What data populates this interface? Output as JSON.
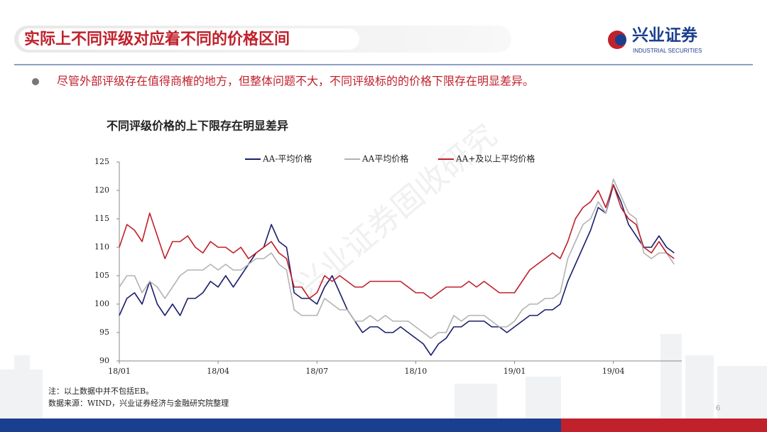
{
  "header": {
    "title": "实际上不同评级对应着不同的价格区间"
  },
  "logo": {
    "name": "兴业证券",
    "subtitle": "INDUSTRIAL SECURITIES"
  },
  "bullet": "尽管外部评级存在值得商榷的地方，但整体问题不大，不同评级标的的价格下限存在明显差异。",
  "watermark": "兴业证券固收研究",
  "chart_data": {
    "type": "line",
    "title": "不同评级价格的上下限存在明显差异",
    "categories": [
      "18/01",
      null,
      null,
      null,
      null,
      null,
      null,
      null,
      null,
      null,
      null,
      null,
      null,
      "18/04",
      null,
      null,
      null,
      null,
      null,
      null,
      null,
      null,
      null,
      null,
      null,
      null,
      "18/07",
      null,
      null,
      null,
      null,
      null,
      null,
      null,
      null,
      null,
      null,
      null,
      null,
      "18/10",
      null,
      null,
      null,
      null,
      null,
      null,
      null,
      null,
      null,
      null,
      null,
      null,
      "19/01",
      null,
      null,
      null,
      null,
      null,
      null,
      null,
      null,
      null,
      null,
      null,
      null,
      "19/04",
      null,
      null,
      null,
      null,
      null,
      null,
      null,
      null
    ],
    "series": [
      {
        "name": "AA-平均价格",
        "color": "#1b1f6b",
        "values": [
          98,
          101,
          102,
          100,
          104,
          100,
          98,
          100,
          98,
          101,
          101,
          102,
          104,
          103,
          105,
          103,
          105,
          107,
          109,
          110,
          114,
          111,
          110,
          102,
          101,
          101,
          100,
          103,
          105,
          102,
          99,
          97,
          95,
          96,
          96,
          95,
          95,
          96,
          95,
          94,
          93,
          91,
          93,
          94,
          96,
          96,
          97,
          97,
          97,
          96,
          96,
          95,
          96,
          97,
          98,
          98,
          99,
          99,
          100,
          104,
          107,
          110,
          113,
          117,
          116,
          121,
          118,
          114,
          112,
          110,
          110,
          112,
          110,
          109
        ]
      },
      {
        "name": "AA平均价格",
        "color": "#b3b3b3",
        "values": [
          103,
          105,
          105,
          102,
          104,
          103,
          101,
          103,
          105,
          106,
          106,
          106,
          107,
          106,
          107,
          106,
          106,
          107,
          108,
          108,
          109,
          107,
          106,
          99,
          98,
          98,
          98,
          101,
          100,
          99,
          99,
          97,
          97,
          98,
          97,
          98,
          97,
          97,
          97,
          96,
          95,
          94,
          95,
          95,
          98,
          97,
          98,
          98,
          98,
          97,
          96,
          96,
          97,
          99,
          100,
          100,
          101,
          101,
          102,
          108,
          111,
          114,
          115,
          118,
          116,
          122,
          119,
          116,
          115,
          109,
          108,
          109,
          109,
          107
        ]
      },
      {
        "name": "AA+及以上平均价格",
        "color": "#c0212b",
        "values": [
          110,
          114,
          113,
          111,
          116,
          112,
          108,
          111,
          111,
          112,
          110,
          109,
          111,
          110,
          110,
          109,
          110,
          108,
          109,
          110,
          111,
          109,
          108,
          103,
          103,
          101,
          102,
          105,
          104,
          105,
          104,
          103,
          103,
          104,
          104,
          104,
          104,
          104,
          103,
          102,
          102,
          101,
          102,
          103,
          103,
          103,
          104,
          103,
          104,
          103,
          102,
          102,
          102,
          104,
          106,
          107,
          108,
          109,
          108,
          111,
          115,
          117,
          118,
          120,
          117,
          121,
          117,
          115,
          114,
          110,
          109,
          111,
          109,
          108
        ]
      }
    ],
    "ylim": [
      90,
      125
    ],
    "yticks": [
      90,
      95,
      100,
      105,
      110,
      115,
      120,
      125
    ]
  },
  "notes": [
    "注：以上数据中并不包括EB。",
    "数据来源：WIND，兴业证券经济与金融研究院整理"
  ],
  "page_number": "6"
}
